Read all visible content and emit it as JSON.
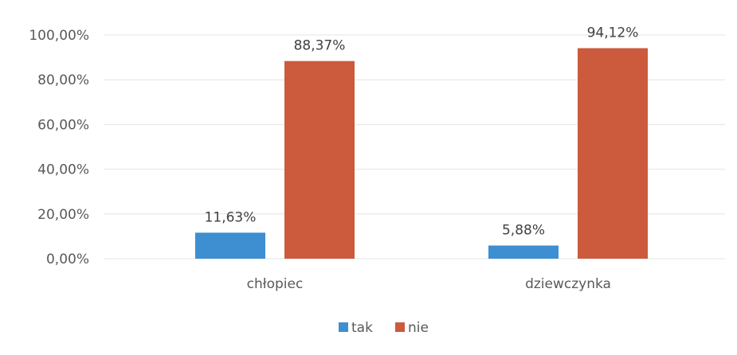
{
  "chart_data": {
    "type": "bar",
    "categories": [
      "chłopiec",
      "dziewczynka"
    ],
    "series": [
      {
        "name": "tak",
        "values": [
          11.63,
          5.88
        ],
        "labels": [
          "11,63%",
          "5,88%"
        ],
        "color": "#3d8fd1"
      },
      {
        "name": "nie",
        "values": [
          88.37,
          94.12
        ],
        "labels": [
          "88,37%",
          "94,12%"
        ],
        "color": "#cc5a3c"
      }
    ],
    "yticks": [
      "0,00%",
      "20,00%",
      "40,00%",
      "60,00%",
      "80,00%",
      "100,00%"
    ],
    "ylim": [
      0,
      100
    ],
    "grid": true,
    "legend": "bottom"
  }
}
